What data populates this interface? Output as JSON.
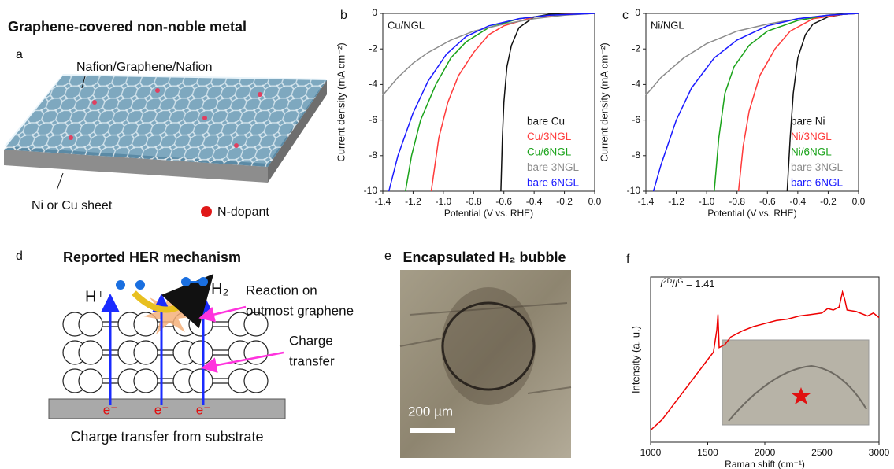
{
  "figure": {
    "a": {
      "letter": "a",
      "title": "Graphene-covered non-noble metal",
      "layer_label": "Nafion/Graphene/Nafion",
      "sheet_label": "Ni or Cu sheet",
      "dopant_label": "N-dopant"
    },
    "d": {
      "letter": "d",
      "title": "Reported HER mechanism",
      "proton": "H⁺",
      "hydrogen": "H₂",
      "reaction": [
        "Reaction on",
        "outmost graphene"
      ],
      "transfer": [
        "Charge",
        "transfer"
      ],
      "electrons": [
        "e⁻",
        "e⁻",
        "e⁻"
      ],
      "caption": "Charge transfer from substrate"
    },
    "e": {
      "letter": "e",
      "title": "Encapsulated H₂ bubble",
      "scale": "200 µm"
    }
  },
  "chart_data": [
    {
      "type": "line",
      "letter": "b",
      "annotation": "Cu/NGL",
      "xlabel": "Potential (V vs. RHE)",
      "ylabel": "Current density (mA cm⁻²)",
      "xlim": [
        -1.4,
        0
      ],
      "ylim": [
        -10,
        0
      ],
      "xticks": [
        -1.4,
        -1.2,
        {
          "value": -1,
          "label": "-1.0"
        },
        -0.8,
        -0.6,
        -0.4,
        -0.2,
        {
          "value": 0,
          "label": "0.0"
        }
      ],
      "yticks": [
        0,
        -2,
        -4,
        -6,
        -8,
        -10
      ],
      "legend": "lower right",
      "series": [
        {
          "name": "bare Cu",
          "color": "#111111",
          "x": [
            0,
            -0.3,
            -0.4,
            -0.5,
            -0.55,
            -0.58,
            -0.6,
            -0.61,
            -0.62
          ],
          "values": [
            0,
            -0.05,
            -0.2,
            -0.8,
            -1.8,
            -3,
            -5,
            -7,
            -10
          ]
        },
        {
          "name": "Cu/3NGL",
          "color": "#ff3b3b",
          "x": [
            0,
            -0.2,
            -0.4,
            -0.6,
            -0.7,
            -0.8,
            -0.9,
            -0.97,
            -1.03,
            -1.08
          ],
          "values": [
            0,
            -0.05,
            -0.2,
            -0.7,
            -1.2,
            -2.2,
            -3.5,
            -5,
            -7,
            -10
          ]
        },
        {
          "name": "Cu/6NGL",
          "color": "#1aa31a",
          "x": [
            0,
            -0.3,
            -0.5,
            -0.7,
            -0.85,
            -0.95,
            -1.05,
            -1.15,
            -1.21,
            -1.25
          ],
          "values": [
            0,
            -0.1,
            -0.3,
            -0.8,
            -1.6,
            -2.5,
            -4,
            -6,
            -8,
            -10
          ]
        },
        {
          "name": "bare 3NGL",
          "color": "#8c8c8c",
          "x": [
            0,
            -0.2,
            -0.4,
            -0.6,
            -0.8,
            -0.95,
            -1.1,
            -1.2,
            -1.3,
            -1.4
          ],
          "values": [
            0,
            -0.1,
            -0.3,
            -0.6,
            -1,
            -1.5,
            -2.2,
            -2.8,
            -3.6,
            -4.6
          ]
        },
        {
          "name": "bare 6NGL",
          "color": "#1a1aff",
          "x": [
            0,
            -0.3,
            -0.5,
            -0.7,
            -0.85,
            -0.98,
            -1.1,
            -1.2,
            -1.3,
            -1.36
          ],
          "values": [
            0,
            -0.1,
            -0.3,
            -0.7,
            -1.3,
            -2.3,
            -3.8,
            -5.6,
            -8,
            -10
          ]
        }
      ]
    },
    {
      "type": "line",
      "letter": "c",
      "annotation": "Ni/NGL",
      "xlabel": "Potential (V vs. RHE)",
      "ylabel": "Current density (mA cm⁻²)",
      "xlim": [
        -1.4,
        0
      ],
      "ylim": [
        -10,
        0
      ],
      "xticks": [
        -1.4,
        -1.2,
        {
          "value": -1,
          "label": "-1.0"
        },
        -0.8,
        -0.6,
        -0.4,
        -0.2,
        {
          "value": 0,
          "label": "0.0"
        }
      ],
      "yticks": [
        0,
        -2,
        -4,
        -6,
        -8,
        -10
      ],
      "legend": "lower right",
      "series": [
        {
          "name": "bare Ni",
          "color": "#111111",
          "x": [
            0,
            -0.1,
            -0.2,
            -0.3,
            -0.35,
            -0.4,
            -0.43,
            -0.45,
            -0.47
          ],
          "values": [
            0,
            -0.05,
            -0.2,
            -0.6,
            -1.2,
            -2.5,
            -4.5,
            -7,
            -10
          ]
        },
        {
          "name": "Ni/3NGL",
          "color": "#ff3b3b",
          "x": [
            0,
            -0.1,
            -0.3,
            -0.45,
            -0.55,
            -0.65,
            -0.72,
            -0.76,
            -0.79
          ],
          "values": [
            0,
            -0.05,
            -0.3,
            -1,
            -2,
            -3.5,
            -5.5,
            -7.5,
            -10
          ]
        },
        {
          "name": "Ni/6NGL",
          "color": "#1aa31a",
          "x": [
            0,
            -0.2,
            -0.4,
            -0.6,
            -0.72,
            -0.82,
            -0.88,
            -0.92,
            -0.95
          ],
          "values": [
            0,
            -0.1,
            -0.4,
            -1,
            -1.8,
            -3,
            -4.5,
            -7,
            -10
          ]
        },
        {
          "name": "bare 3NGL",
          "color": "#8c8c8c",
          "x": [
            0,
            -0.2,
            -0.4,
            -0.6,
            -0.8,
            -1,
            -1.15,
            -1.3,
            -1.4
          ],
          "values": [
            0,
            -0.1,
            -0.3,
            -0.6,
            -1,
            -1.7,
            -2.5,
            -3.6,
            -4.6
          ]
        },
        {
          "name": "bare 6NGL",
          "color": "#1a1aff",
          "x": [
            0,
            -0.2,
            -0.4,
            -0.6,
            -0.8,
            -0.95,
            -1.1,
            -1.2,
            -1.3,
            -1.35
          ],
          "values": [
            0,
            -0.1,
            -0.3,
            -0.7,
            -1.5,
            -2.5,
            -4.2,
            -6,
            -8.5,
            -10
          ]
        }
      ]
    },
    {
      "type": "line",
      "letter": "f",
      "annotation_parts": [
        "I",
        "2D",
        "/",
        "I",
        "G",
        " = 1.41"
      ],
      "xlabel": "Raman shift (cm⁻¹)",
      "ylabel": "Intensity (a. u.)",
      "xlim": [
        1000,
        3000
      ],
      "ylim": [
        0,
        110
      ],
      "xticks": [
        1000,
        1500,
        2000,
        2500,
        3000
      ],
      "series": [
        {
          "color": "#ee0000",
          "x": [
            1000,
            1100,
            1200,
            1300,
            1400,
            1500,
            1550,
            1580,
            1590,
            1600,
            1650,
            1700,
            1800,
            1900,
            2000,
            2100,
            2200,
            2300,
            2400,
            2500,
            2550,
            2600,
            2650,
            2680,
            2700,
            2720,
            2800,
            2900,
            2950,
            3000
          ],
          "values": [
            8,
            15,
            25,
            35,
            45,
            55,
            60,
            75,
            85,
            63,
            65,
            70,
            74,
            77,
            79,
            81,
            82,
            84,
            85,
            86,
            89,
            88,
            90,
            100,
            95,
            88,
            87,
            84,
            86,
            83
          ]
        }
      ]
    }
  ]
}
